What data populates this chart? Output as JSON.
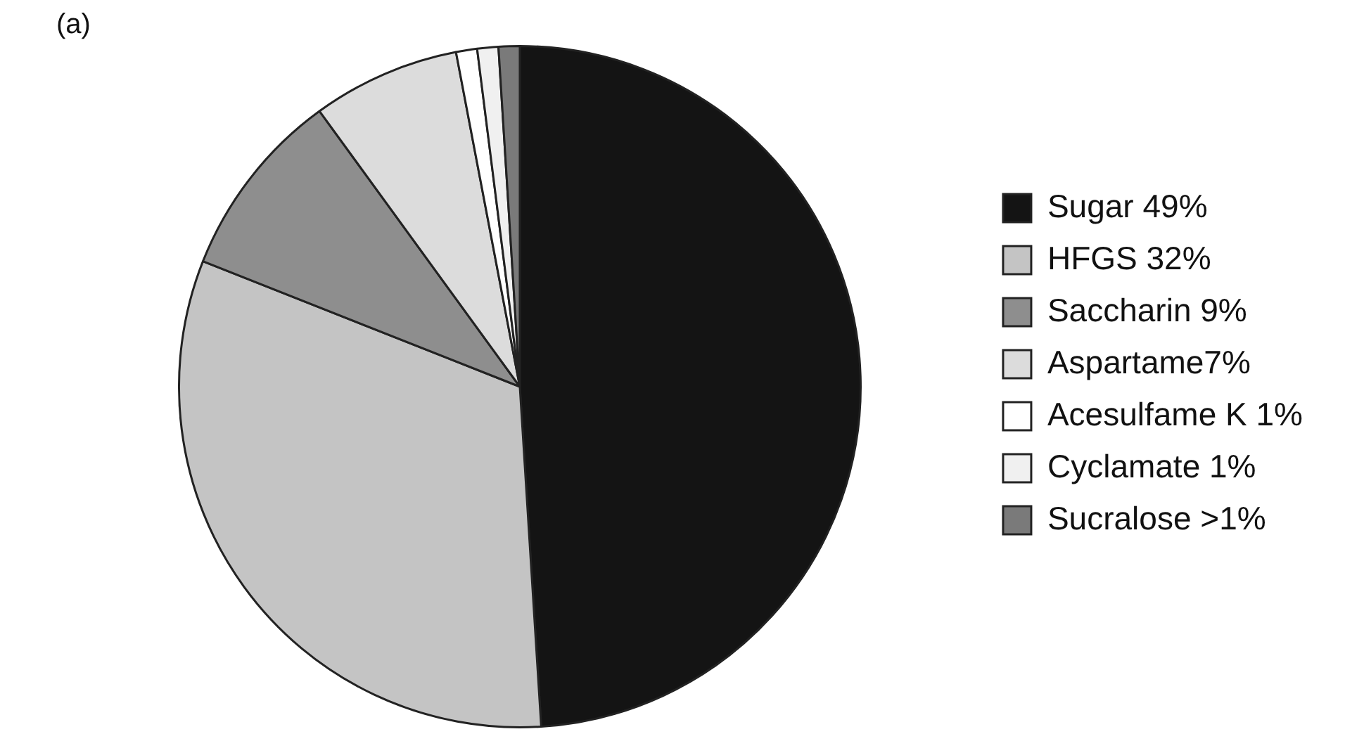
{
  "chart_data": {
    "type": "pie",
    "title": "(a)",
    "categories": [
      "Sugar 49%",
      "HFGS 32%",
      "Saccharin 9%",
      "Aspartame7%",
      "Acesulfame K 1%",
      "Cyclamate 1%",
      "Sucralose >1%"
    ],
    "values": [
      49,
      32,
      9,
      7,
      1,
      1,
      1
    ],
    "colors": [
      "#141414",
      "#c4c4c4",
      "#8e8e8e",
      "#dcdcdc",
      "#ffffff",
      "#f0f0f0",
      "#7a7a7a"
    ],
    "legend": "right"
  }
}
